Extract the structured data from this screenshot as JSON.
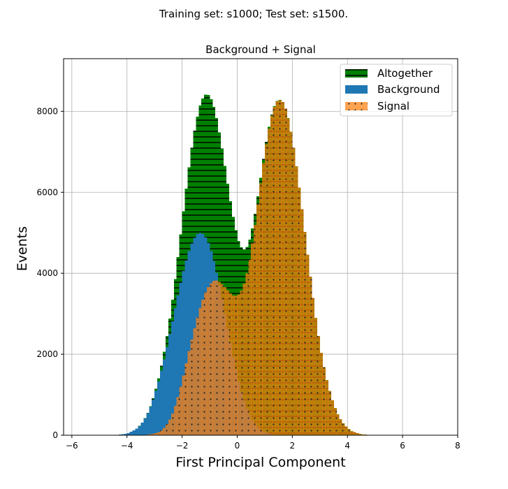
{
  "figure": {
    "suptitle": "Training set: s1000;   Test set: s1500."
  },
  "chart_data": {
    "type": "bar",
    "subtype": "overlaid histogram",
    "title": "Background + Signal",
    "xlabel": "First Principal Component",
    "ylabel": "Events",
    "xlim": [
      -6.3,
      8.0
    ],
    "ylim": [
      0,
      9300
    ],
    "xticks": [
      -6,
      -4,
      -2,
      0,
      2,
      4,
      6,
      8
    ],
    "yticks": [
      0,
      2000,
      4000,
      6000,
      8000
    ],
    "xtick_labels": [
      "−6",
      "−4",
      "−2",
      "0",
      "2",
      "4",
      "6",
      "8"
    ],
    "ytick_labels": [
      "0",
      "2000",
      "4000",
      "6000",
      "8000"
    ],
    "grid": true,
    "legend_position": "top-right",
    "bin_range": [
      -6.0,
      7.0
    ],
    "bin_width": 0.1,
    "series": [
      {
        "name": "Altogether",
        "style": "green bars with black horizontal hatching",
        "color": "#008000",
        "hatch_color": "#000000",
        "values": [
          0,
          0,
          0,
          0,
          0,
          0,
          0,
          0,
          0,
          0,
          0,
          0,
          0,
          0,
          0,
          0,
          10,
          16,
          25,
          38,
          56,
          83,
          118,
          166,
          230,
          312,
          420,
          555,
          720,
          915,
          1145,
          1410,
          1715,
          2060,
          2450,
          2880,
          3350,
          3860,
          4400,
          4960,
          5530,
          6090,
          6620,
          7100,
          7520,
          7870,
          8140,
          8320,
          8410,
          8400,
          8300,
          8110,
          7830,
          7480,
          7080,
          6650,
          6210,
          5780,
          5390,
          5060,
          4800,
          4640,
          4590,
          4650,
          4830,
          5110,
          5470,
          5900,
          6360,
          6820,
          7250,
          7620,
          7920,
          8130,
          8260,
          8280,
          8230,
          8070,
          7830,
          7500,
          7100,
          6640,
          6120,
          5580,
          5020,
          4460,
          3920,
          3390,
          2900,
          2450,
          2040,
          1680,
          1365,
          1095,
          866,
          676,
          520,
          393,
          292,
          212,
          152,
          107,
          74,
          50,
          33,
          21,
          14,
          9,
          6,
          4,
          3,
          2,
          0,
          0,
          0,
          0,
          0,
          0,
          0,
          0,
          0,
          0,
          0,
          0,
          0,
          0,
          0
        ]
      },
      {
        "name": "Background",
        "style": "blue solid bars",
        "color": "#1f77b4",
        "values": [
          0,
          0,
          0,
          0,
          0,
          0,
          0,
          0,
          0,
          0,
          0,
          0,
          0,
          0,
          0,
          0,
          10,
          16,
          25,
          38,
          56,
          83,
          118,
          165,
          228,
          308,
          412,
          541,
          698,
          881,
          1092,
          1330,
          1592,
          1876,
          2178,
          2492,
          2814,
          3138,
          3457,
          3764,
          4053,
          4315,
          4545,
          4734,
          4876,
          4965,
          4998,
          4971,
          4885,
          4741,
          4543,
          4298,
          4011,
          3692,
          3350,
          2993,
          2632,
          2277,
          1936,
          1617,
          1326,
          1068,
          845,
          656,
          501,
          374,
          274,
          197,
          139,
          96,
          65,
          43,
          28,
          18,
          11,
          7,
          4,
          2,
          1,
          1,
          0,
          0,
          0,
          0,
          0,
          0,
          0,
          0,
          0,
          0,
          0,
          0,
          0,
          0,
          0,
          0,
          0,
          0,
          0,
          0,
          0,
          0,
          0,
          0,
          0,
          0,
          0,
          0,
          0,
          0,
          0,
          0,
          0,
          0,
          0,
          0,
          0,
          0,
          0,
          0,
          0,
          0,
          0,
          0,
          0,
          0,
          0,
          0,
          0,
          0,
          0
        ]
      },
      {
        "name": "Signal",
        "style": "orange bars with dark dot hatching, semi-transparent",
        "color": "#ff7f0e",
        "hatch_color": "#333333",
        "values": [
          0,
          0,
          0,
          0,
          0,
          0,
          0,
          0,
          0,
          0,
          0,
          0,
          0,
          0,
          0,
          0,
          0,
          0,
          0,
          0,
          0,
          0,
          0,
          1,
          2,
          4,
          8,
          14,
          22,
          34,
          53,
          80,
          123,
          184,
          272,
          388,
          536,
          722,
          943,
          1196,
          1477,
          1775,
          2075,
          2366,
          2644,
          2905,
          3142,
          3349,
          3525,
          3659,
          3757,
          3812,
          3819,
          3788,
          3730,
          3657,
          3578,
          3503,
          3454,
          3443,
          3474,
          3572,
          3745,
          4004,
          4329,
          4736,
          5196,
          5703,
          6221,
          6724,
          7185,
          7577,
          7892,
          8112,
          8249,
          8273,
          8226,
          8068,
          7829,
          7499,
          7100,
          6640,
          6120,
          5580,
          5020,
          4460,
          3920,
          3390,
          2900,
          2450,
          2040,
          1680,
          1365,
          1095,
          866,
          676,
          520,
          393,
          292,
          212,
          152,
          107,
          74,
          50,
          33,
          21,
          14,
          9,
          6,
          4,
          3,
          2,
          0,
          0,
          0,
          0,
          0,
          0,
          0,
          0,
          0,
          0,
          0,
          0,
          0,
          0,
          0,
          0,
          0,
          0,
          0,
          0
        ]
      }
    ]
  }
}
